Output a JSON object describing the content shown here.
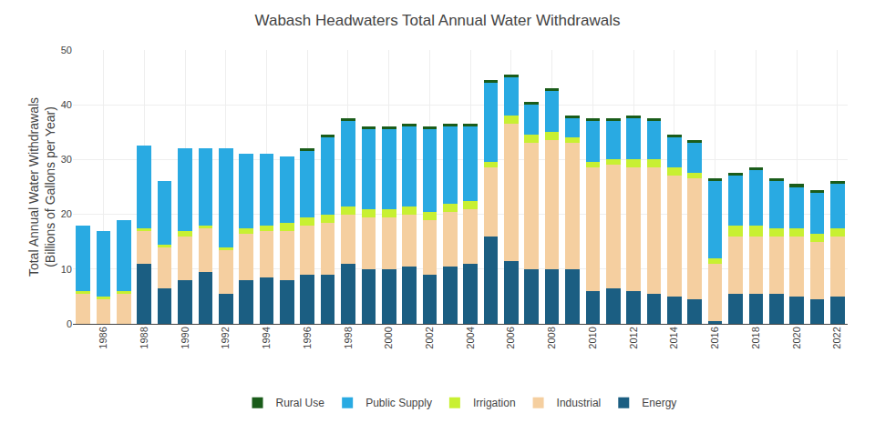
{
  "chart_data": {
    "type": "bar",
    "title": "Wabash Headwaters Total Annual Water Withdrawals",
    "ylabel": "Total Annual Water Withdrawals\n(Billions of Gallons per Year)",
    "categories": [
      null,
      "1986",
      null,
      "1988",
      null,
      "1990",
      null,
      "1992",
      null,
      "1994",
      null,
      "1996",
      null,
      "1998",
      null,
      "2000",
      null,
      "2002",
      null,
      "2004",
      null,
      "2006",
      null,
      "2008",
      null,
      "2010",
      null,
      "2012",
      null,
      "2014",
      null,
      "2016",
      null,
      "2018",
      null,
      "2020",
      null,
      "2022"
    ],
    "series": [
      {
        "name": "Energy",
        "color": "#1b5e82",
        "values": [
          0.0,
          0.0,
          0.0,
          11.0,
          6.5,
          8.0,
          9.5,
          5.5,
          8.0,
          8.5,
          8.0,
          9.0,
          9.0,
          11.0,
          10.0,
          10.0,
          10.5,
          9.0,
          10.5,
          11.0,
          16.0,
          11.5,
          10.0,
          10.0,
          10.0,
          6.0,
          6.5,
          6.0,
          5.5,
          5.0,
          4.5,
          0.5,
          5.5,
          5.5,
          5.5,
          5.0,
          4.5,
          5.0
        ]
      },
      {
        "name": "Industrial",
        "color": "#f5cfa0",
        "values": [
          5.5,
          4.5,
          5.5,
          6.0,
          7.5,
          8.0,
          8.0,
          8.0,
          8.5,
          8.5,
          9.0,
          9.0,
          9.5,
          9.0,
          9.5,
          9.5,
          9.5,
          10.0,
          10.0,
          10.0,
          12.5,
          25.0,
          23.0,
          23.5,
          23.0,
          22.5,
          22.5,
          22.5,
          23.0,
          22.0,
          22.0,
          10.5,
          10.5,
          10.5,
          10.5,
          11.0,
          10.5,
          11.0
        ]
      },
      {
        "name": "Irrigation",
        "color": "#c8f032",
        "values": [
          0.5,
          0.5,
          0.5,
          0.5,
          0.5,
          1.0,
          0.5,
          0.5,
          1.0,
          1.0,
          1.5,
          1.5,
          1.5,
          1.5,
          1.5,
          1.5,
          1.5,
          1.5,
          1.5,
          1.5,
          1.0,
          1.5,
          1.5,
          1.5,
          1.0,
          1.0,
          1.0,
          1.5,
          1.5,
          1.5,
          1.0,
          1.0,
          2.0,
          2.0,
          1.5,
          1.5,
          1.5,
          1.5
        ]
      },
      {
        "name": "Public Supply",
        "color": "#29aae2",
        "values": [
          12.0,
          12.0,
          13.0,
          15.0,
          11.5,
          15.0,
          14.0,
          18.0,
          13.5,
          13.0,
          12.0,
          12.0,
          14.0,
          15.5,
          14.5,
          14.5,
          14.5,
          15.0,
          14.0,
          13.5,
          14.5,
          7.0,
          5.5,
          7.5,
          3.5,
          7.5,
          7.0,
          7.5,
          7.0,
          5.5,
          5.5,
          14.0,
          9.0,
          10.0,
          8.5,
          7.5,
          7.5,
          8.0
        ]
      },
      {
        "name": "Rural Use",
        "color": "#1a5c1a",
        "values": [
          0.0,
          0.0,
          0.0,
          0.0,
          0.0,
          0.0,
          0.0,
          0.0,
          0.0,
          0.0,
          0.0,
          0.5,
          0.5,
          0.5,
          0.5,
          0.5,
          0.5,
          0.5,
          0.5,
          0.5,
          0.5,
          0.5,
          0.5,
          0.5,
          0.5,
          0.5,
          0.5,
          0.5,
          0.5,
          0.5,
          0.5,
          0.5,
          0.5,
          0.5,
          0.5,
          0.5,
          0.5,
          0.5
        ]
      }
    ],
    "stacked": true,
    "ylim": [
      0,
      50
    ],
    "yticks": [
      0,
      10,
      20,
      30,
      40,
      50
    ],
    "grid": true,
    "legend": "bottom"
  }
}
